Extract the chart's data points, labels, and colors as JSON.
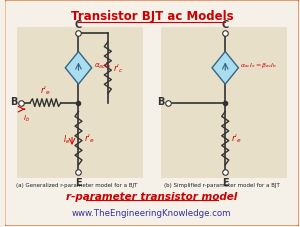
{
  "title": "Transistor BJT ac Models",
  "title_color": "#cc0000",
  "bg_color": "#f5f0e8",
  "border_color": "#e07030",
  "panel_bg": "#e8dfc8",
  "caption_left": "(a) Generalized r-parameter model for a BJT",
  "caption_right": "(b) Simplified r-parameter model for a BJT",
  "subtitle": "r-parameter transistor model",
  "subtitle_color": "#cc0000",
  "website": "www.TheEngineeringKnowledge.com",
  "website_color": "#333399",
  "label_color": "#cc0000",
  "node_color": "#333333",
  "wire_color": "#333333",
  "diamond_fill": "#aaddee",
  "diamond_edge": "#336688"
}
